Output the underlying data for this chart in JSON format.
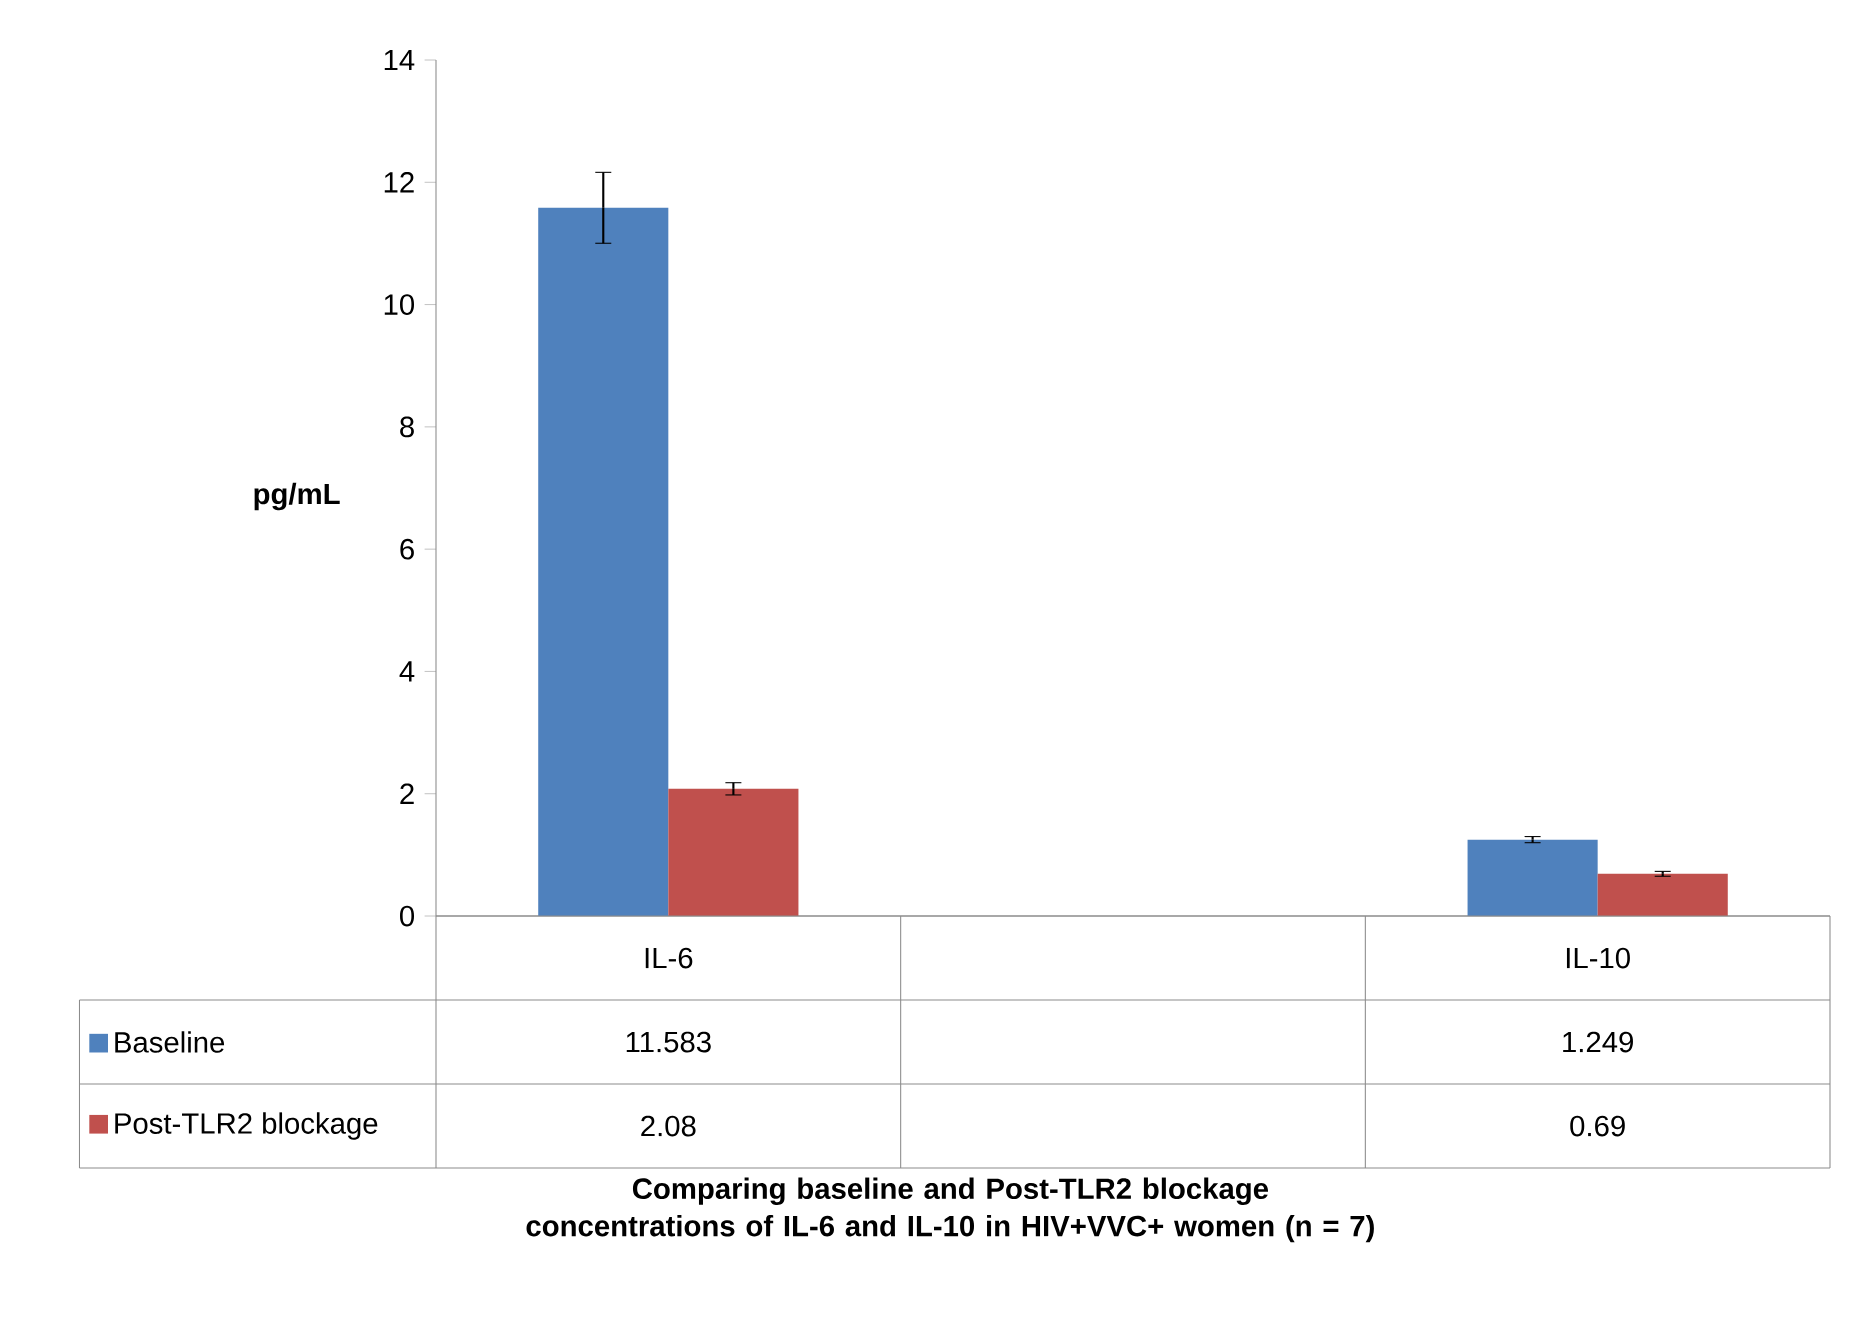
{
  "chart_data": {
    "type": "bar",
    "title": "Comparing baseline and Post-TLR2 blockage concentrations of IL-6 and IL-10 in HIV+VVC+ women (n = 7)",
    "ylabel": "pg/mL",
    "categories": [
      "IL-6",
      null,
      "IL-10"
    ],
    "ylim": [
      0,
      14
    ],
    "yticks": [
      0,
      2,
      4,
      6,
      8,
      10,
      12,
      14
    ],
    "grid": false,
    "legend": "bottom left",
    "data_labels": true,
    "series": [
      {
        "name": "Baseline",
        "color": "#4f81bd",
        "values": [
          11.583,
          null,
          1.249
        ],
        "errors": [
          0.58,
          null,
          0.05
        ]
      },
      {
        "name": "Post-TLR2 blockage",
        "color": "#c0504d",
        "values": [
          2.08,
          null,
          0.69
        ],
        "errors": [
          0.1,
          null,
          0.04
        ]
      }
    ]
  }
}
